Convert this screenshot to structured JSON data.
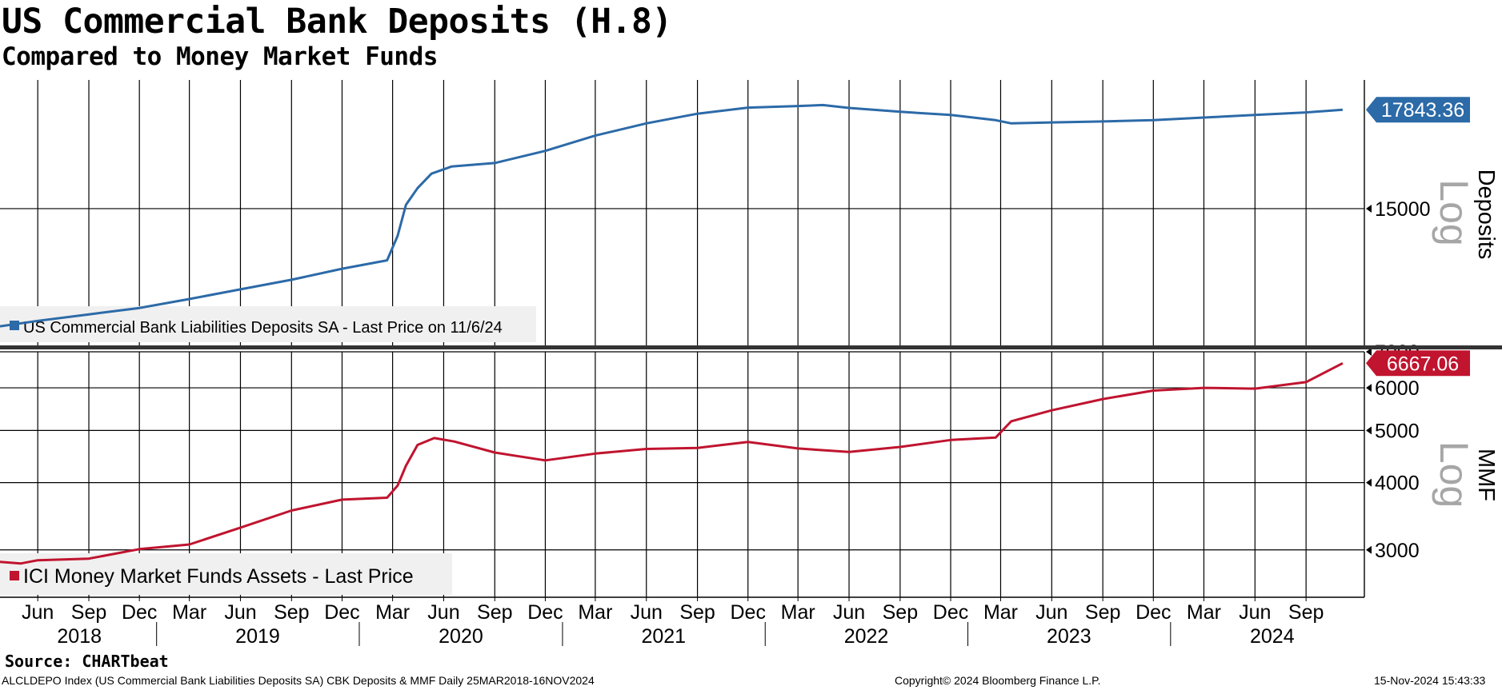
{
  "title": "US Commercial Bank Deposits (H.8)",
  "subtitle": "Compared to Money Market Funds",
  "source": "Source: CHARTbeat",
  "footer": {
    "left": "ALCLDEPO Index (US Commercial Bank Liabilities Deposits SA) CBK Deposits & MMF  Daily 25MAR2018-16NOV2024",
    "center": "Copyright© 2024 Bloomberg Finance L.P.",
    "right": "15-Nov-2024 15:43:33"
  },
  "chart_data": [
    {
      "type": "line",
      "name": "top-panel",
      "axis_label": "Deposits",
      "scale_label": "Log",
      "yscale": "log",
      "ylim": [
        11800,
        18800
      ],
      "yticks": [
        15000
      ],
      "legend": "US Commercial Bank Liabilities Deposits SA - Last Price on 11/6/24",
      "last_value_label": "17843.36",
      "color": "#2c6aa8",
      "series": [
        {
          "name": "US Commercial Bank Liabilities Deposits SA - Last Price on 11/6/24",
          "x": [
            "2018-03-25",
            "2018-06-01",
            "2018-09-01",
            "2018-12-01",
            "2019-03-01",
            "2019-06-01",
            "2019-09-01",
            "2019-12-01",
            "2020-02-20",
            "2020-03-10",
            "2020-03-25",
            "2020-04-15",
            "2020-05-10",
            "2020-06-15",
            "2020-09-01",
            "2020-12-01",
            "2021-03-01",
            "2021-06-01",
            "2021-09-01",
            "2021-12-01",
            "2022-03-01",
            "2022-04-15",
            "2022-06-01",
            "2022-09-01",
            "2022-12-01",
            "2023-02-20",
            "2023-03-20",
            "2023-06-01",
            "2023-09-01",
            "2023-12-01",
            "2024-03-01",
            "2024-06-01",
            "2024-09-01",
            "2024-11-06"
          ],
          "y": [
            12200,
            12320,
            12460,
            12600,
            12800,
            13020,
            13240,
            13500,
            13700,
            14300,
            15100,
            15550,
            15950,
            16150,
            16250,
            16600,
            17050,
            17420,
            17720,
            17910,
            17960,
            17990,
            17900,
            17780,
            17680,
            17520,
            17420,
            17450,
            17480,
            17520,
            17600,
            17680,
            17760,
            17843.36
          ]
        }
      ]
    },
    {
      "type": "line",
      "name": "bottom-panel",
      "axis_label": "MMF",
      "scale_label": "Log",
      "yscale": "log",
      "ylim": [
        2450,
        7000
      ],
      "yticks": [
        3000,
        4000,
        5000,
        6000,
        7000
      ],
      "legend": "ICI Money Market Funds Assets - Last Price",
      "last_value_label": "6667.06",
      "color": "#c0142f",
      "series": [
        {
          "name": "ICI Money Market Funds Assets - Last Price",
          "x": [
            "2018-03-25",
            "2018-05-01",
            "2018-06-01",
            "2018-09-01",
            "2018-12-01",
            "2019-03-01",
            "2019-06-01",
            "2019-09-01",
            "2019-12-01",
            "2020-02-20",
            "2020-03-10",
            "2020-03-25",
            "2020-04-15",
            "2020-05-15",
            "2020-06-20",
            "2020-09-01",
            "2020-12-01",
            "2021-03-01",
            "2021-06-01",
            "2021-09-01",
            "2021-12-01",
            "2022-03-01",
            "2022-06-01",
            "2022-09-01",
            "2022-12-01",
            "2023-02-20",
            "2023-03-20",
            "2023-06-01",
            "2023-09-01",
            "2023-12-01",
            "2024-03-01",
            "2024-06-01",
            "2024-09-01",
            "2024-11-06"
          ],
          "y": [
            2850,
            2830,
            2870,
            2890,
            3010,
            3070,
            3300,
            3550,
            3720,
            3750,
            3950,
            4300,
            4700,
            4840,
            4770,
            4550,
            4400,
            4530,
            4620,
            4640,
            4760,
            4630,
            4560,
            4660,
            4800,
            4850,
            5200,
            5450,
            5720,
            5930,
            6000,
            5980,
            6150,
            6667.06
          ]
        }
      ]
    }
  ],
  "x_axis": {
    "months": [
      "Jun",
      "Sep",
      "Dec",
      "Mar",
      "Jun",
      "Sep",
      "Dec",
      "Mar",
      "Jun",
      "Sep",
      "Dec",
      "Mar",
      "Jun",
      "Sep",
      "Dec",
      "Mar",
      "Jun",
      "Sep",
      "Dec",
      "Mar",
      "Jun",
      "Sep",
      "Dec",
      "Mar",
      "Jun",
      "Sep"
    ],
    "month_dates": [
      "2018-06-01",
      "2018-09-01",
      "2018-12-01",
      "2019-03-01",
      "2019-06-01",
      "2019-09-01",
      "2019-12-01",
      "2020-03-01",
      "2020-06-01",
      "2020-09-01",
      "2020-12-01",
      "2021-03-01",
      "2021-06-01",
      "2021-09-01",
      "2021-12-01",
      "2022-03-01",
      "2022-06-01",
      "2022-09-01",
      "2022-12-01",
      "2023-03-01",
      "2023-06-01",
      "2023-09-01",
      "2023-12-01",
      "2024-03-01",
      "2024-06-01",
      "2024-09-01"
    ],
    "years": [
      "2018",
      "2019",
      "2020",
      "2021",
      "2022",
      "2023",
      "2024"
    ],
    "year_dates": [
      "2018-08-15",
      "2019-07-02",
      "2020-07-02",
      "2021-07-02",
      "2022-07-02",
      "2023-07-02",
      "2024-07-02"
    ],
    "year_separators": [
      "2019-01-01",
      "2020-01-01",
      "2021-01-01",
      "2022-01-01",
      "2023-01-01",
      "2024-01-01"
    ],
    "range": [
      "2018-03-25",
      "2024-12-15"
    ]
  }
}
